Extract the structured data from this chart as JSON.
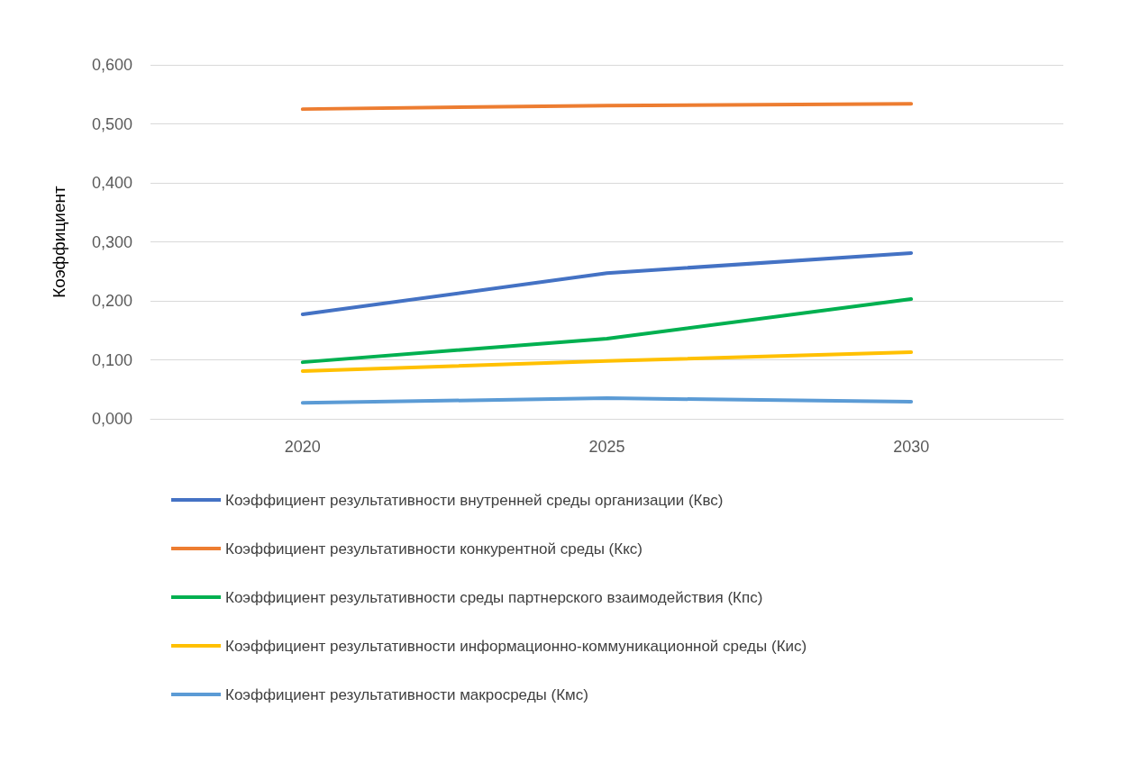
{
  "chart_data": {
    "type": "line",
    "ylabel": "Коэффициент",
    "categories": [
      "2020",
      "2025",
      "2030"
    ],
    "series": [
      {
        "name": "Коэффициент результативности внутренней среды организации (Квс)",
        "color": "#4472c4",
        "values": [
          0.177,
          0.247,
          0.281
        ]
      },
      {
        "name": "Коэффициент результативности конкурентной среды (Ккс)",
        "color": "#ed7d31",
        "values": [
          0.525,
          0.531,
          0.534
        ]
      },
      {
        "name": "Коэффициент результативности среды партнерского взаимодействия (Кпс)",
        "color": "#00b050",
        "values": [
          0.096,
          0.136,
          0.203
        ]
      },
      {
        "name": "Коэффициент результативности информационно-коммуникационной среды (Кис)",
        "color": "#ffc000",
        "values": [
          0.081,
          0.098,
          0.113
        ]
      },
      {
        "name": "Коэффициент результативности макросреды (Кмс)",
        "color": "#5b9bd5",
        "values": [
          0.027,
          0.035,
          0.029
        ]
      }
    ],
    "ylim": [
      0,
      0.6
    ],
    "yticks": [
      {
        "value": 0,
        "label": "0,000"
      },
      {
        "value": 0.1,
        "label": "0,100"
      },
      {
        "value": 0.2,
        "label": "0,200"
      },
      {
        "value": 0.3,
        "label": "0,300"
      },
      {
        "value": 0.4,
        "label": "0,400"
      },
      {
        "value": 0.5,
        "label": "0,500"
      },
      {
        "value": 0.6,
        "label": "0,600"
      }
    ],
    "grid": "y",
    "legend": "bottom",
    "marker": "none",
    "line_style": "solid"
  }
}
